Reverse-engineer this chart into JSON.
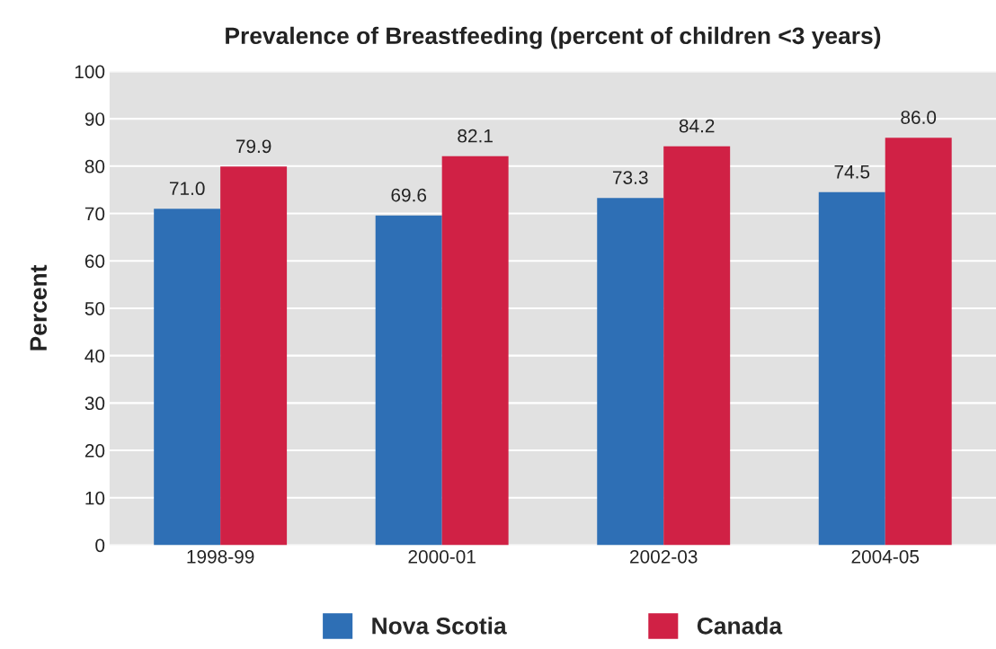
{
  "chart_data": {
    "type": "bar",
    "title": "Prevalence of Breastfeeding (percent of children <3 years)",
    "ylabel": "Percent",
    "categories": [
      "1998-99",
      "2000-01",
      "2002-03",
      "2004-05"
    ],
    "series": [
      {
        "name": "Nova Scotia",
        "color": "#2e6fb5",
        "values": [
          71.0,
          69.6,
          73.3,
          74.5
        ],
        "value_labels": [
          "71.0",
          "69.6",
          "73.3",
          "74.5"
        ]
      },
      {
        "name": "Canada",
        "color": "#d02145",
        "values": [
          79.9,
          82.1,
          84.2,
          86.0
        ],
        "value_labels": [
          "79.9",
          "82.1",
          "84.2",
          "86.0"
        ]
      }
    ],
    "ylim": [
      0,
      100
    ],
    "yticks": [
      0,
      10,
      20,
      30,
      40,
      50,
      60,
      70,
      80,
      90,
      100
    ],
    "grid": "y",
    "legend": "bottom"
  }
}
